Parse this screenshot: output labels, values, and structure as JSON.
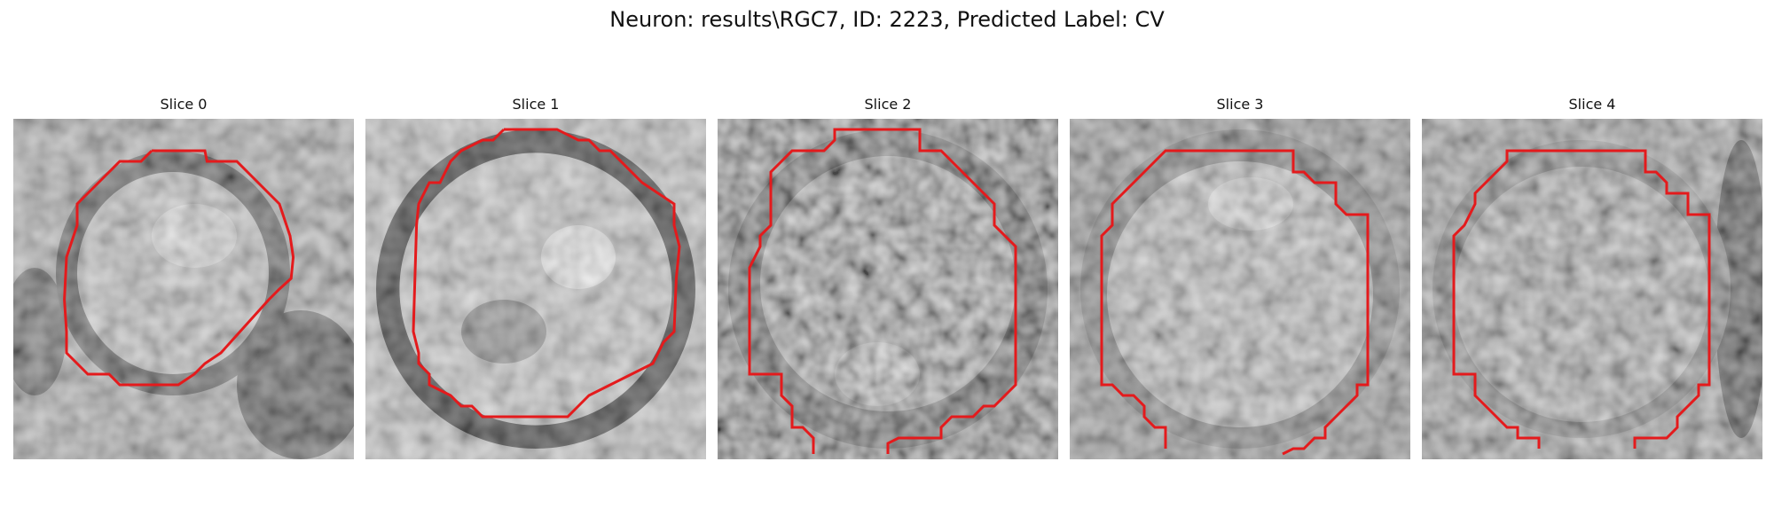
{
  "figure": {
    "title": "Neuron: results\\RGC7, ID: 2223, Predicted Label: CV"
  },
  "contour_color": "#e41a1c",
  "slices": [
    {
      "title": "Slice 0"
    },
    {
      "title": "Slice 1"
    },
    {
      "title": "Slice 2"
    },
    {
      "title": "Slice 3"
    },
    {
      "title": "Slice 4"
    }
  ]
}
